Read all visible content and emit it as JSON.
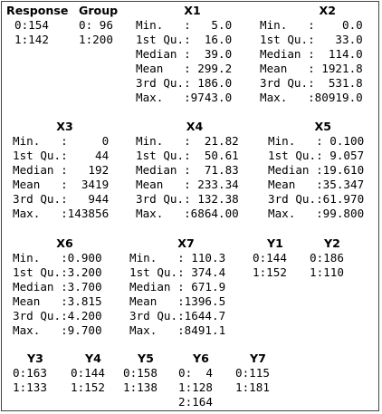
{
  "summary": {
    "row1": [
      {
        "name": "Response",
        "lines": [
          "0:154",
          "1:142"
        ]
      },
      {
        "name": "Group",
        "lines": [
          "0: 96",
          "1:200"
        ]
      },
      {
        "name": "X1",
        "lines": [
          "Min.   :   5.0",
          "1st Qu.:  16.0",
          "Median :  39.0",
          "Mean   : 299.2",
          "3rd Qu.: 186.0",
          "Max.   :9743.0"
        ]
      },
      {
        "name": "X2",
        "lines": [
          "Min.   :    0.0",
          "1st Qu.:   33.0",
          "Median :  114.0",
          "Mean   : 1921.8",
          "3rd Qu.:  531.8",
          "Max.   :80919.0"
        ]
      }
    ],
    "row2": [
      {
        "name": "X3",
        "lines": [
          "Min.   :     0",
          "1st Qu.:    44",
          "Median :   192",
          "Mean   :  3419",
          "3rd Qu.:   944",
          "Max.   :143856"
        ]
      },
      {
        "name": "X4",
        "lines": [
          "Min.   :  21.82",
          "1st Qu.:  50.61",
          "Median :  71.83",
          "Mean   : 233.34",
          "3rd Qu.: 132.38",
          "Max.   :6864.00"
        ]
      },
      {
        "name": "X5",
        "lines": [
          "Min.   : 0.100",
          "1st Qu.: 9.057",
          "Median :19.610",
          "Mean   :35.347",
          "3rd Qu.:61.970",
          "Max.   :99.800"
        ]
      }
    ],
    "row3": [
      {
        "name": "X6",
        "lines": [
          "Min.   :0.900",
          "1st Qu.:3.200",
          "Median :3.700",
          "Mean   :3.815",
          "3rd Qu.:4.200",
          "Max.   :9.700"
        ]
      },
      {
        "name": "X7",
        "lines": [
          "Min.   : 110.3",
          "1st Qu.: 374.4",
          "Median : 671.9",
          "Mean   :1396.5",
          "3rd Qu.:1644.7",
          "Max.   :8491.1"
        ]
      },
      {
        "name": "Y1",
        "lines": [
          "0:144",
          "1:152"
        ]
      },
      {
        "name": "Y2",
        "lines": [
          "0:186",
          "1:110"
        ]
      }
    ],
    "row4": [
      {
        "name": "Y3",
        "lines": [
          "0:163",
          "1:133"
        ]
      },
      {
        "name": "Y4",
        "lines": [
          "0:144",
          "1:152"
        ]
      },
      {
        "name": "Y5",
        "lines": [
          "0:158",
          "1:138"
        ]
      },
      {
        "name": "Y6",
        "lines": [
          "0:  4",
          "1:128",
          "2:164"
        ]
      },
      {
        "name": "Y7",
        "lines": [
          "0:115",
          "1:181"
        ]
      }
    ]
  }
}
